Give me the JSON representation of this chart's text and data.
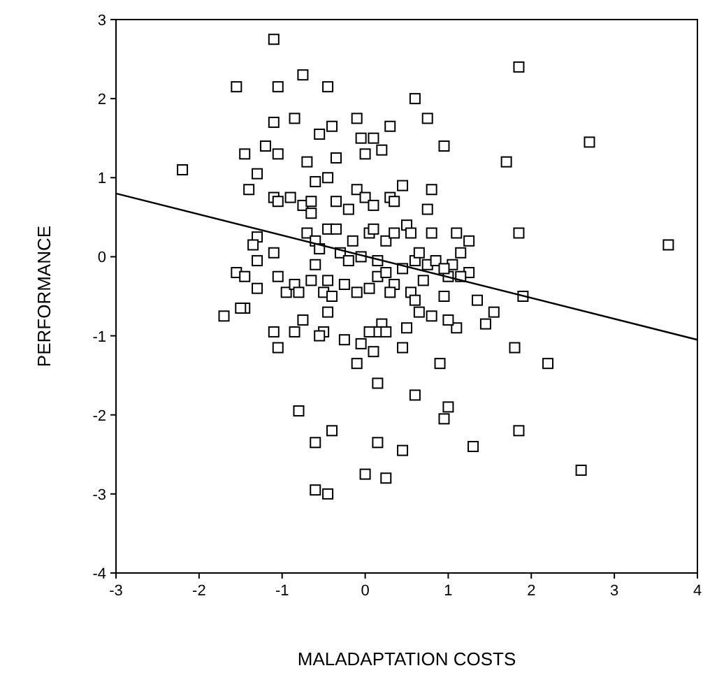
{
  "chart_data": {
    "type": "scatter",
    "xlabel": "MALADAPTATION COSTS",
    "ylabel": "PERFORMANCE",
    "xlim": [
      -3,
      4
    ],
    "ylim": [
      -4,
      3
    ],
    "xticks": [
      -3,
      -2,
      -1,
      0,
      1,
      2,
      3,
      4
    ],
    "yticks": [
      -4,
      -3,
      -2,
      -1,
      0,
      1,
      2,
      3
    ],
    "grid": false,
    "marker": "square",
    "series": [
      {
        "color": "#000000",
        "x": [
          -1.1,
          -0.75,
          -1.55,
          -1.05,
          -0.45,
          1.85,
          0.6,
          0.75,
          -1.1,
          -0.85,
          -0.55,
          -0.4,
          -0.1,
          0.3,
          2.7,
          1.7,
          0.95,
          -1.45,
          -1.2,
          -1.05,
          -0.7,
          -0.35,
          0.0,
          0.2,
          0.1,
          -0.05,
          -2.2,
          -1.3,
          -1.4,
          -0.6,
          -0.45,
          -0.1,
          0.0,
          0.45,
          -0.9,
          -1.1,
          -1.05,
          -0.75,
          -0.65,
          -0.65,
          -0.35,
          -0.2,
          0.1,
          0.3,
          0.35,
          0.8,
          0.75,
          1.85,
          1.1,
          1.25,
          0.8,
          -0.7,
          -0.6,
          -0.45,
          -0.35,
          -0.55,
          -0.3,
          -0.15,
          0.05,
          0.1,
          0.25,
          0.35,
          0.5,
          0.55,
          0.15,
          -0.05,
          -0.2,
          -1.3,
          -1.35,
          -1.1,
          -1.3,
          -1.55,
          -1.45,
          -1.7,
          -1.45,
          -1.5,
          -1.3,
          -1.05,
          -0.95,
          -0.85,
          -0.8,
          -0.6,
          -0.65,
          -0.5,
          -0.45,
          -0.4,
          -0.25,
          -0.1,
          0.05,
          0.15,
          0.25,
          0.35,
          0.3,
          0.45,
          0.6,
          0.65,
          0.75,
          0.7,
          0.55,
          0.85,
          1.05,
          1.15,
          1.25,
          1.35,
          1.45,
          1.55,
          1.9,
          1.0,
          0.95,
          1.1,
          1.0,
          0.8,
          0.65,
          0.5,
          0.6,
          0.2,
          0.15,
          0.05,
          0.25,
          0.1,
          -0.05,
          -0.1,
          -0.5,
          -0.55,
          -0.45,
          -0.75,
          -0.85,
          -1.1,
          -1.05,
          -0.25,
          0.45,
          0.9,
          1.8,
          2.2,
          0.15,
          0.6,
          -0.8,
          1.0,
          0.95,
          1.85,
          -0.6,
          -0.4,
          0.15,
          0.45,
          1.3,
          2.6,
          0.0,
          0.25,
          -0.6,
          -0.45,
          3.65,
          1.15,
          0.95
        ],
        "values": [
          2.75,
          2.3,
          2.15,
          2.15,
          2.15,
          2.4,
          2.0,
          1.75,
          1.7,
          1.75,
          1.55,
          1.65,
          1.75,
          1.65,
          1.45,
          1.2,
          1.4,
          1.3,
          1.4,
          1.3,
          1.2,
          1.25,
          1.3,
          1.35,
          1.5,
          1.5,
          1.1,
          1.05,
          0.85,
          0.95,
          1.0,
          0.85,
          0.75,
          0.9,
          0.75,
          0.75,
          0.7,
          0.65,
          0.7,
          0.55,
          0.7,
          0.6,
          0.65,
          0.75,
          0.7,
          0.85,
          0.6,
          0.3,
          0.3,
          0.2,
          0.3,
          0.3,
          0.2,
          0.35,
          0.35,
          0.1,
          0.05,
          0.2,
          0.3,
          0.35,
          0.2,
          0.3,
          0.4,
          0.3,
          -0.05,
          0.0,
          -0.05,
          0.25,
          0.15,
          0.05,
          -0.05,
          -0.2,
          -0.25,
          -0.75,
          -0.65,
          -0.65,
          -0.4,
          -0.25,
          -0.45,
          -0.35,
          -0.45,
          -0.1,
          -0.3,
          -0.45,
          -0.3,
          -0.5,
          -0.35,
          -0.45,
          -0.4,
          -0.25,
          -0.2,
          -0.35,
          -0.45,
          -0.15,
          -0.05,
          0.05,
          -0.1,
          -0.3,
          -0.45,
          -0.05,
          -0.1,
          0.05,
          -0.2,
          -0.55,
          -0.85,
          -0.7,
          -0.5,
          -0.25,
          -0.5,
          -0.9,
          -0.8,
          -0.75,
          -0.7,
          -0.9,
          -0.55,
          -0.85,
          -0.95,
          -0.95,
          -0.95,
          -1.2,
          -1.1,
          -1.35,
          -0.95,
          -1.0,
          -0.7,
          -0.8,
          -0.95,
          -0.95,
          -1.15,
          -1.05,
          -1.15,
          -1.35,
          -1.15,
          -1.35,
          -1.6,
          -1.75,
          -1.95,
          -1.9,
          -2.05,
          -2.2,
          -2.35,
          -2.2,
          -2.35,
          -2.45,
          -2.4,
          -2.7,
          -2.75,
          -2.8,
          -2.95,
          -3.0,
          0.15,
          -0.25,
          -0.15
        ]
      },
      {
        "type": "line",
        "color": "#000000",
        "marker": "none",
        "x": [
          -3,
          4
        ],
        "values": [
          0.8,
          -1.05
        ]
      }
    ]
  }
}
